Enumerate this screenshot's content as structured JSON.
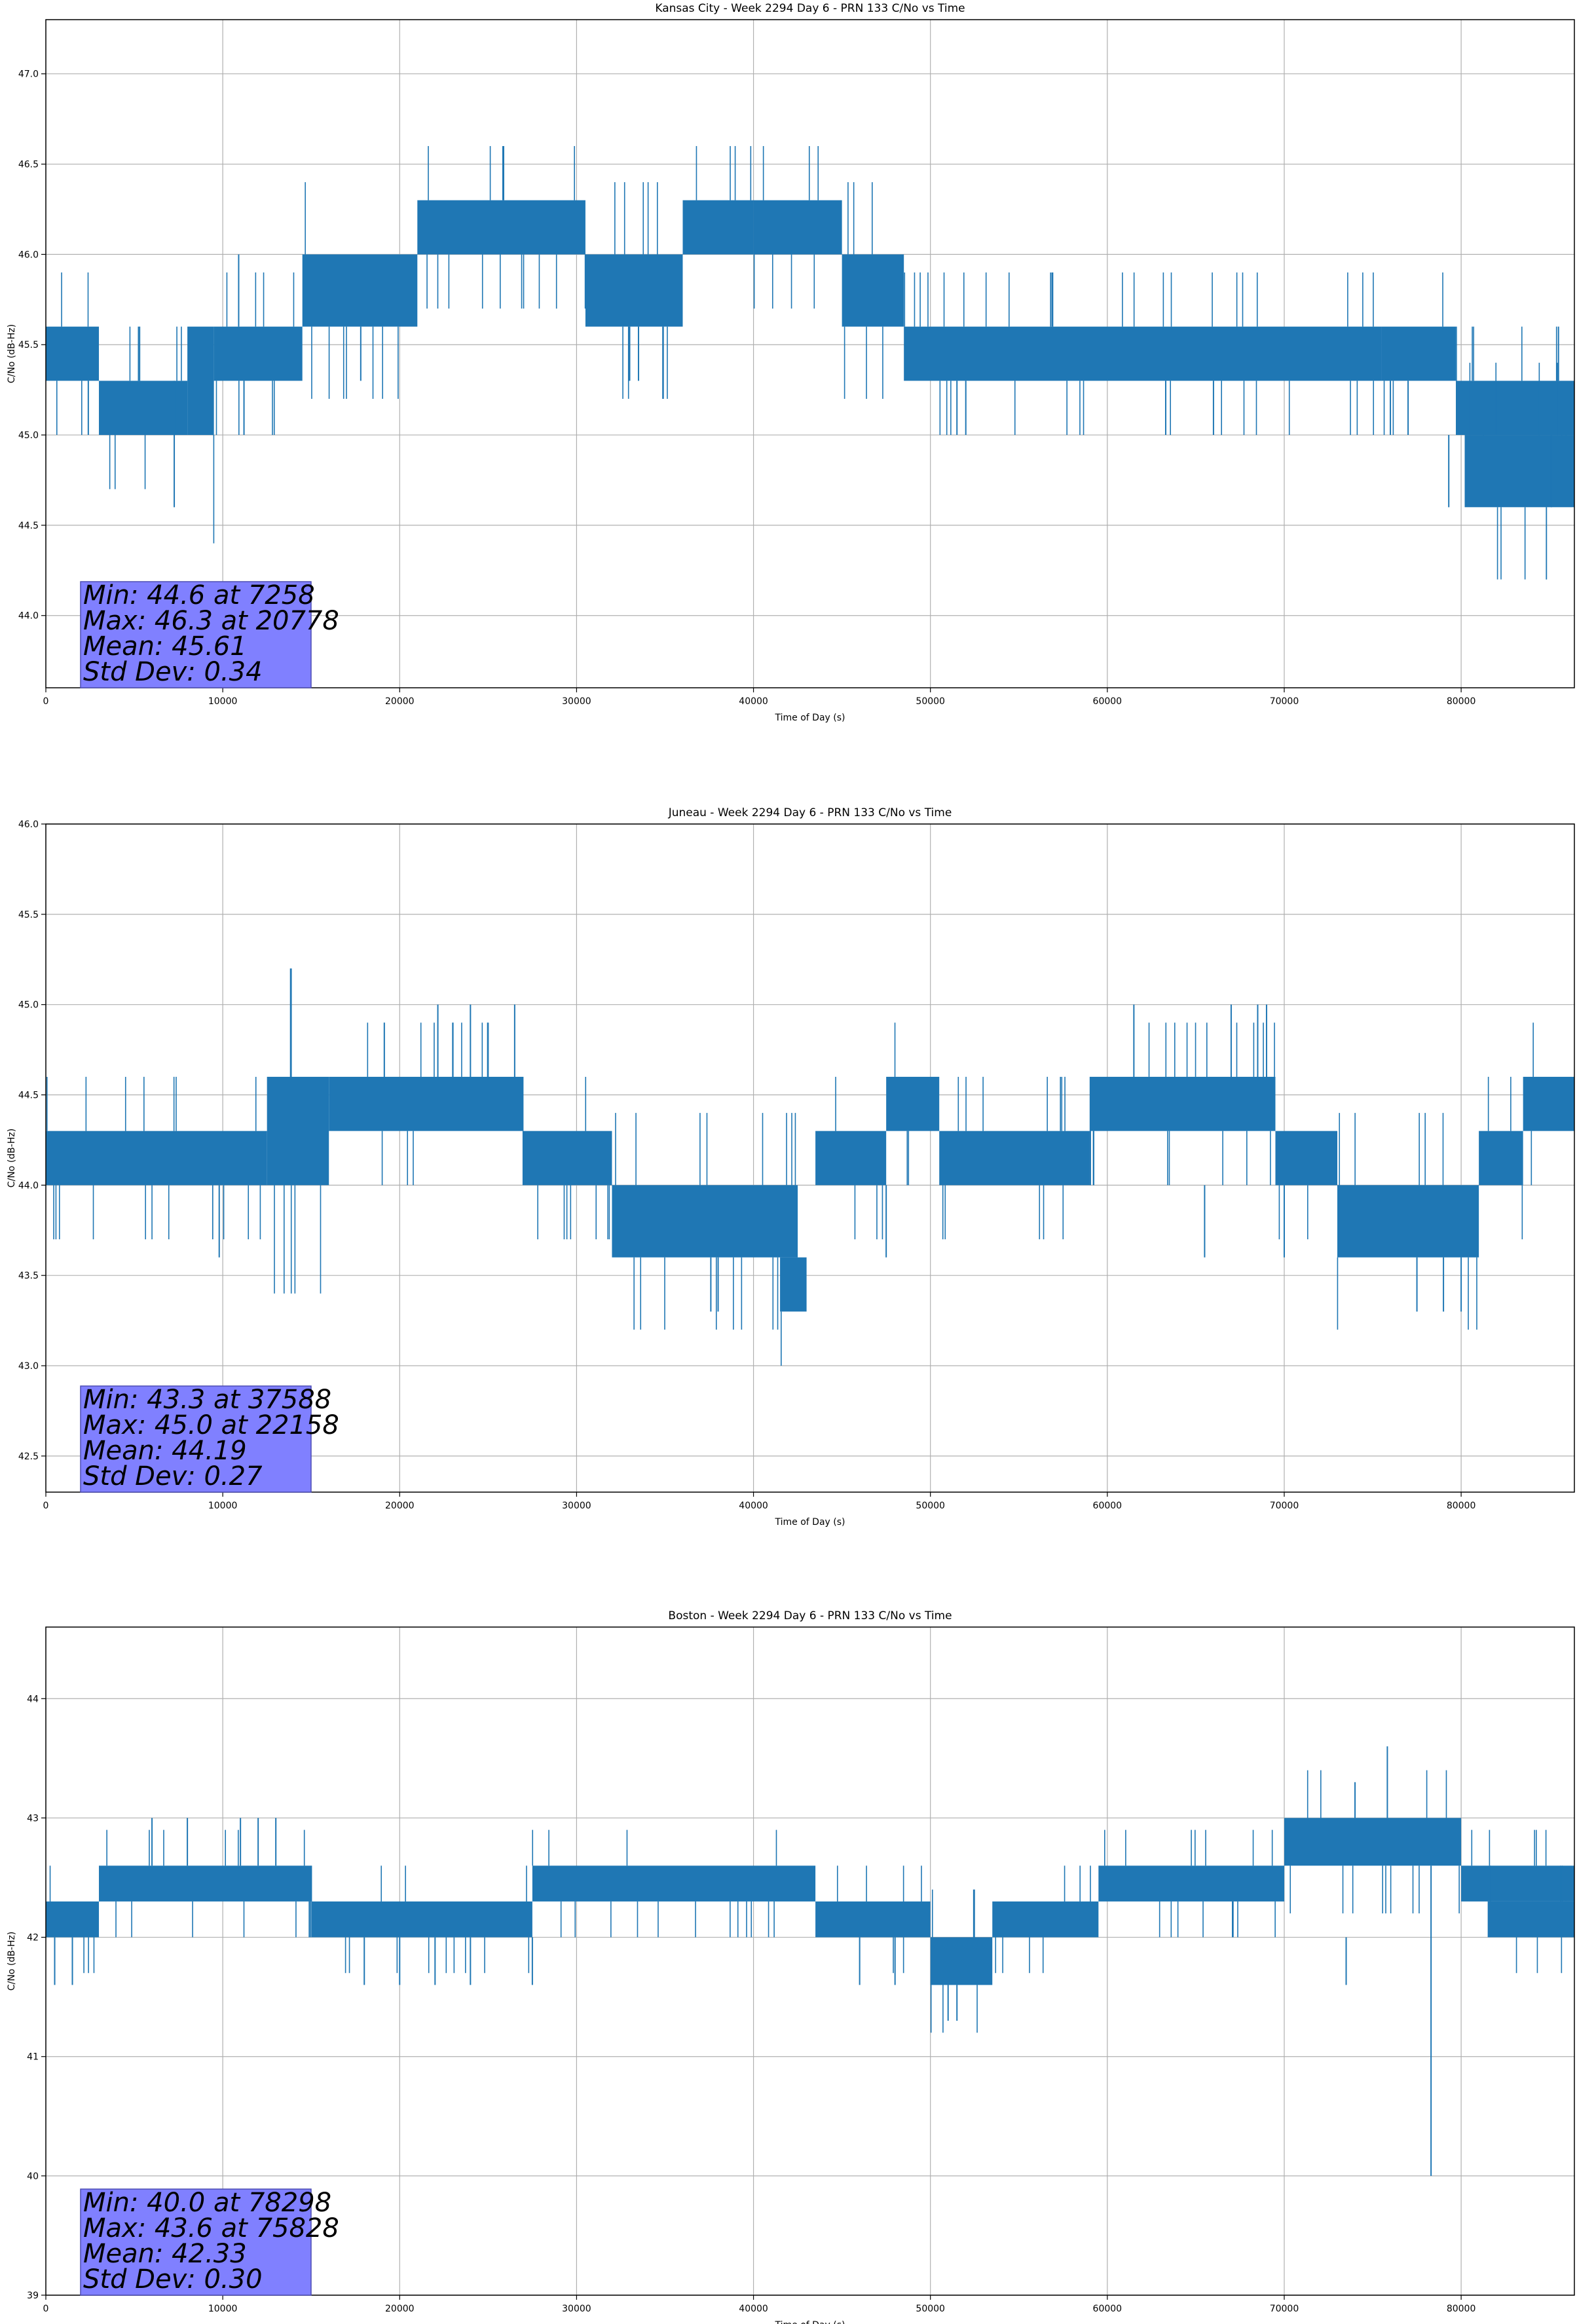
{
  "colors": {
    "series": "#1f77b4",
    "grid": "#b0b0b0",
    "axes": "#000000",
    "stats_box_fill": "#8080ff",
    "stats_box_edge": "#4d4db3"
  },
  "chart_data": [
    {
      "type": "line",
      "title": "Kansas City - Week 2294 Day 6 - PRN 133 C/No vs Time",
      "xlabel": "Time of Day (s)",
      "ylabel": "C/No (dB-Hz)",
      "xlim": [
        0,
        86400
      ],
      "ylim": [
        43.6,
        47.3
      ],
      "xticks": [
        0,
        10000,
        20000,
        30000,
        40000,
        50000,
        60000,
        70000,
        80000
      ],
      "xtick_labels": [
        "0",
        "10000",
        "20000",
        "30000",
        "40000",
        "50000",
        "60000",
        "70000",
        "80000"
      ],
      "yticks": [
        44.0,
        44.5,
        45.0,
        45.5,
        46.0,
        46.5,
        47.0
      ],
      "ytick_labels": [
        "44.0",
        "44.5",
        "45.0",
        "45.5",
        "46.0",
        "46.5",
        "47.0"
      ],
      "grid": true,
      "series": [
        {
          "band_segments": [
            [
              0,
              3000,
              45.3,
              45.6
            ],
            [
              3000,
              8000,
              45.0,
              45.3
            ],
            [
              8000,
              9500,
              45.0,
              45.6
            ],
            [
              9500,
              14500,
              45.3,
              45.6
            ],
            [
              14500,
              21000,
              45.6,
              46.0
            ],
            [
              21000,
              30500,
              46.0,
              46.3
            ],
            [
              30500,
              36000,
              45.6,
              46.0
            ],
            [
              36000,
              40000,
              46.0,
              46.3
            ],
            [
              40000,
              45000,
              46.0,
              46.3
            ],
            [
              45000,
              48500,
              45.6,
              46.0
            ],
            [
              48500,
              75500,
              45.3,
              45.6
            ],
            [
              75500,
              79700,
              45.3,
              45.6
            ],
            [
              79700,
              86400,
              45.0,
              45.3
            ],
            [
              80200,
              86400,
              44.6,
              45.0
            ]
          ],
          "spikes": [
            [
              7258,
              44.6,
              45.3
            ],
            [
              10900,
              45.6,
              46.0
            ],
            [
              11200,
              45.0,
              45.3
            ],
            [
              2400,
              45.0,
              45.3
            ],
            [
              5300,
              45.3,
              45.6
            ],
            [
              17800,
              45.3,
              45.6
            ],
            [
              33000,
              45.3,
              45.6
            ],
            [
              33500,
              45.3,
              45.6
            ],
            [
              51500,
              45.0,
              45.3
            ],
            [
              52000,
              45.0,
              45.3
            ],
            [
              63300,
              45.0,
              45.3
            ],
            [
              66000,
              45.0,
              45.3
            ],
            [
              76000,
              45.0,
              45.3
            ],
            [
              77000,
              45.0,
              45.3
            ],
            [
              85500,
              45.6,
              45.3
            ],
            [
              85100,
              44.6,
              45.0
            ],
            [
              79300,
              44.6,
              45.0
            ]
          ]
        }
      ],
      "stats": [
        "Min: 44.6 at 7258",
        "Max: 46.3 at 20778",
        "Mean: 45.61",
        "Std Dev: 0.34"
      ]
    },
    {
      "type": "line",
      "title": "Juneau - Week 2294 Day 6 - PRN 133 C/No vs Time",
      "xlabel": "Time of Day (s)",
      "ylabel": "C/No (dB-Hz)",
      "xlim": [
        0,
        86400
      ],
      "ylim": [
        42.3,
        46.0
      ],
      "xticks": [
        0,
        10000,
        20000,
        30000,
        40000,
        50000,
        60000,
        70000,
        80000
      ],
      "xtick_labels": [
        "0",
        "10000",
        "20000",
        "30000",
        "40000",
        "50000",
        "60000",
        "70000",
        "80000"
      ],
      "yticks": [
        42.5,
        43.0,
        43.5,
        44.0,
        44.5,
        45.0,
        45.5,
        46.0
      ],
      "ytick_labels": [
        "42.5",
        "43.0",
        "43.5",
        "44.0",
        "44.5",
        "45.0",
        "45.5",
        "46.0"
      ],
      "grid": true,
      "series": [
        {
          "band_segments": [
            [
              0,
              12500,
              44.0,
              44.3
            ],
            [
              12500,
              16000,
              44.0,
              44.6
            ],
            [
              16000,
              27000,
              44.3,
              44.6
            ],
            [
              27000,
              32000,
              44.0,
              44.3
            ],
            [
              32000,
              36000,
              43.6,
              44.0
            ],
            [
              36000,
              42500,
              43.6,
              44.0
            ],
            [
              41500,
              43000,
              43.3,
              43.6
            ],
            [
              43500,
              47500,
              44.0,
              44.3
            ],
            [
              47500,
              50500,
              44.3,
              44.6
            ],
            [
              50500,
              59000,
              44.0,
              44.3
            ],
            [
              59000,
              69500,
              44.3,
              44.6
            ],
            [
              69500,
              73000,
              44.0,
              44.3
            ],
            [
              73000,
              81000,
              43.6,
              44.0
            ],
            [
              81000,
              83500,
              44.0,
              44.3
            ],
            [
              83500,
              86400,
              44.3,
              44.6
            ]
          ],
          "spikes": [
            [
              9800,
              43.6,
              44.0
            ],
            [
              22158,
              44.6,
              45.0
            ],
            [
              23000,
              44.6,
              44.9
            ],
            [
              24000,
              44.6,
              45.0
            ],
            [
              25000,
              44.6,
              44.9
            ],
            [
              26500,
              44.6,
              45.0
            ],
            [
              37588,
              43.3,
              43.6
            ],
            [
              38000,
              43.3,
              43.6
            ],
            [
              47500,
              43.6,
              44.0
            ],
            [
              61500,
              44.6,
              45.0
            ],
            [
              67000,
              44.6,
              45.0
            ],
            [
              68500,
              44.6,
              45.0
            ],
            [
              69000,
              44.6,
              45.0
            ],
            [
              65500,
              43.6,
              44.0
            ],
            [
              70000,
              43.6,
              44.0
            ],
            [
              77500,
              43.3,
              43.6
            ],
            [
              79000,
              43.3,
              43.6
            ],
            [
              80000,
              43.3,
              43.6
            ]
          ]
        }
      ],
      "stats": [
        "Min: 43.3 at 37588",
        "Max: 45.0 at 22158",
        "Mean: 44.19",
        "Std Dev: 0.27"
      ]
    },
    {
      "type": "line",
      "title": "Boston - Week 2294 Day 6 - PRN 133 C/No vs Time",
      "xlabel": "Time of Day (s)",
      "ylabel": "C/No (dB-Hz)",
      "xlim": [
        0,
        86400
      ],
      "ylim": [
        39.0,
        44.6
      ],
      "xticks": [
        0,
        10000,
        20000,
        30000,
        40000,
        50000,
        60000,
        70000,
        80000
      ],
      "xtick_labels": [
        "0",
        "10000",
        "20000",
        "30000",
        "40000",
        "50000",
        "60000",
        "70000",
        "80000"
      ],
      "yticks": [
        39,
        40,
        41,
        42,
        43,
        44
      ],
      "ytick_labels": [
        "39",
        "40",
        "41",
        "42",
        "43",
        "44"
      ],
      "grid": true,
      "series": [
        {
          "band_segments": [
            [
              0,
              3000,
              42.0,
              42.3
            ],
            [
              3000,
              15000,
              42.3,
              42.6
            ],
            [
              15000,
              27500,
              42.0,
              42.3
            ],
            [
              27500,
              43500,
              42.3,
              42.6
            ],
            [
              43500,
              50000,
              42.0,
              42.3
            ],
            [
              50000,
              53500,
              41.6,
              42.0
            ],
            [
              53500,
              59500,
              42.0,
              42.3
            ],
            [
              59500,
              70000,
              42.3,
              42.6
            ],
            [
              70000,
              80000,
              42.6,
              43.0
            ],
            [
              80000,
              86400,
              42.3,
              42.6
            ],
            [
              81500,
              86400,
              42.0,
              42.3
            ]
          ],
          "spikes": [
            [
              500,
              41.6,
              42.0
            ],
            [
              1500,
              41.6,
              42.0
            ],
            [
              6000,
              42.6,
              43.0
            ],
            [
              8000,
              42.6,
              43.0
            ],
            [
              11000,
              42.6,
              43.0
            ],
            [
              12000,
              42.6,
              43.0
            ],
            [
              13000,
              42.6,
              43.0
            ],
            [
              18000,
              41.6,
              42.0
            ],
            [
              20000,
              41.6,
              42.0
            ],
            [
              22000,
              41.6,
              42.0
            ],
            [
              24000,
              41.6,
              42.0
            ],
            [
              27500,
              41.6,
              42.0
            ],
            [
              46000,
              41.6,
              42.0
            ],
            [
              48000,
              41.6,
              42.0
            ],
            [
              51000,
              41.3,
              41.6
            ],
            [
              51500,
              41.3,
              41.6
            ],
            [
              73500,
              41.6,
              42.0
            ],
            [
              74000,
              43.0,
              43.3
            ],
            [
              75828,
              43.0,
              43.6
            ],
            [
              78298,
              40.0,
              42.6
            ]
          ]
        }
      ],
      "stats": [
        "Min: 40.0 at 78298",
        "Max: 43.6 at 75828",
        "Mean: 42.33",
        "Std Dev: 0.30"
      ]
    }
  ]
}
